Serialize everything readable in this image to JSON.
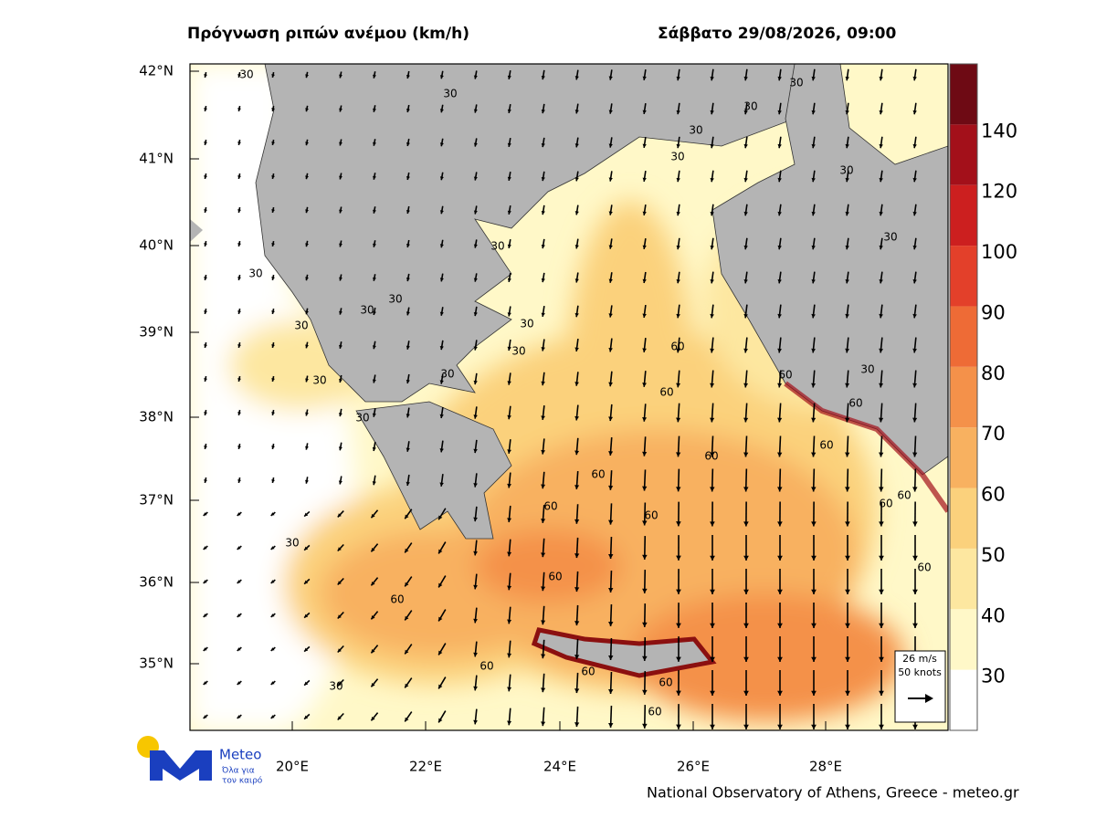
{
  "header": {
    "title": "Πρόγνωση ριπών ανέμου (km/h)",
    "datetime": "Σάββατο 29/08/2026, 09:00"
  },
  "map": {
    "lat_ticks": [
      "42°N",
      "41°N",
      "40°N",
      "39°N",
      "38°N",
      "37°N",
      "36°N",
      "35°N"
    ],
    "lon_ticks": [
      "20°E",
      "22°E",
      "24°E",
      "26°E",
      "28°E"
    ],
    "contour_labels": [
      30,
      30,
      30,
      30,
      30,
      30,
      30,
      30,
      30,
      30,
      30,
      30,
      30,
      30,
      30,
      30,
      30,
      30,
      30,
      60,
      60,
      60,
      60,
      60,
      60,
      60,
      60,
      60,
      60,
      60,
      60,
      60,
      60,
      60,
      60,
      60,
      60,
      30,
      30
    ]
  },
  "colorbar": {
    "levels": [
      30,
      40,
      50,
      60,
      70,
      80,
      90,
      100,
      120,
      140
    ],
    "colors": [
      "#ffffff",
      "#fff8c8",
      "#fde7a0",
      "#fbd17c",
      "#f8b160",
      "#f4914a",
      "#ee6b36",
      "#e3402a",
      "#cc1f1f",
      "#a3101a",
      "#6e0a14"
    ]
  },
  "reference_vector": {
    "speed": "26 m/s",
    "knots": "50 knots"
  },
  "logo": {
    "name": "Meteo",
    "tagline_1": "Όλα για",
    "tagline_2": "τον καιρό"
  },
  "credit": "National Observatory of Athens, Greece - meteo.gr"
}
